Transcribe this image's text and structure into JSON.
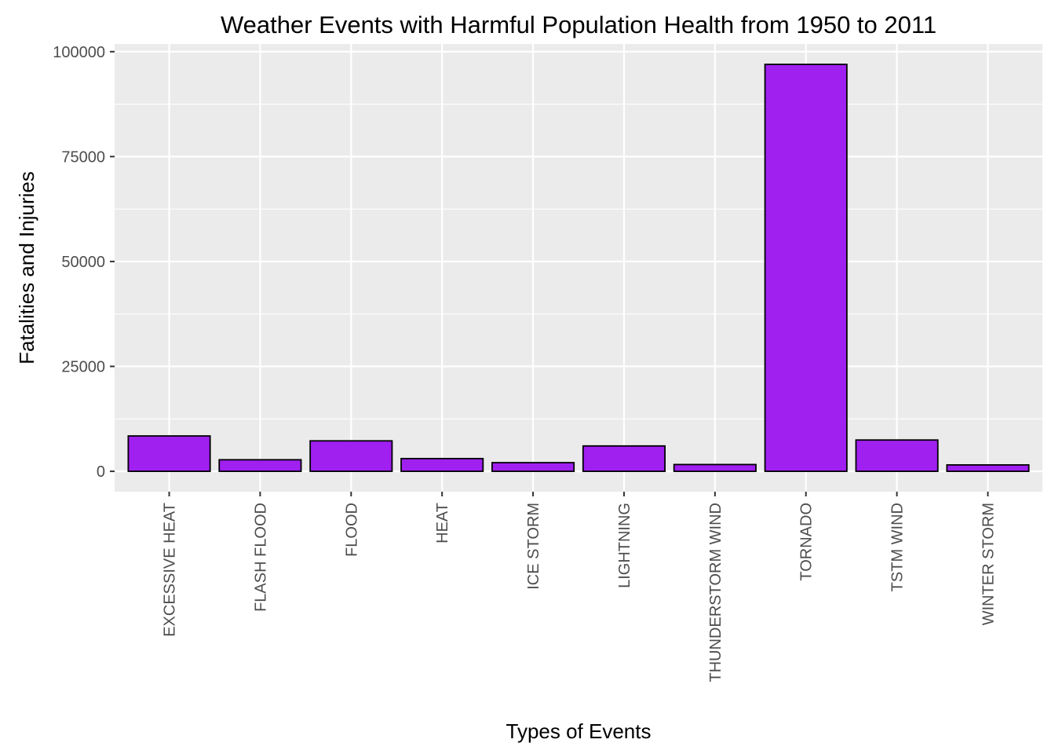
{
  "chart_data": {
    "type": "bar",
    "title": "Weather Events with Harmful Population Health from 1950 to 2011",
    "xlabel": "Types of Events",
    "ylabel": "Fatalities and Injuries",
    "categories": [
      "EXCESSIVE HEAT",
      "FLASH FLOOD",
      "FLOOD",
      "HEAT",
      "ICE STORM",
      "LIGHTNING",
      "THUNDERSTORM WIND",
      "TORNADO",
      "TSTM WIND",
      "WINTER STORM"
    ],
    "values": [
      8428,
      2755,
      7259,
      3037,
      2064,
      6046,
      1621,
      96979,
      7461,
      1527
    ],
    "ylim": [
      -4849,
      101829
    ],
    "yticks": [
      0,
      25000,
      50000,
      75000,
      100000
    ],
    "ytick_labels": [
      "0",
      "25000",
      "50000",
      "75000",
      "100000"
    ],
    "grid": true,
    "colors": {
      "bar_fill": "#A020F0",
      "bar_outline": "#000000",
      "panel_background": "#EBEBEB",
      "grid": "#FFFFFF"
    }
  }
}
